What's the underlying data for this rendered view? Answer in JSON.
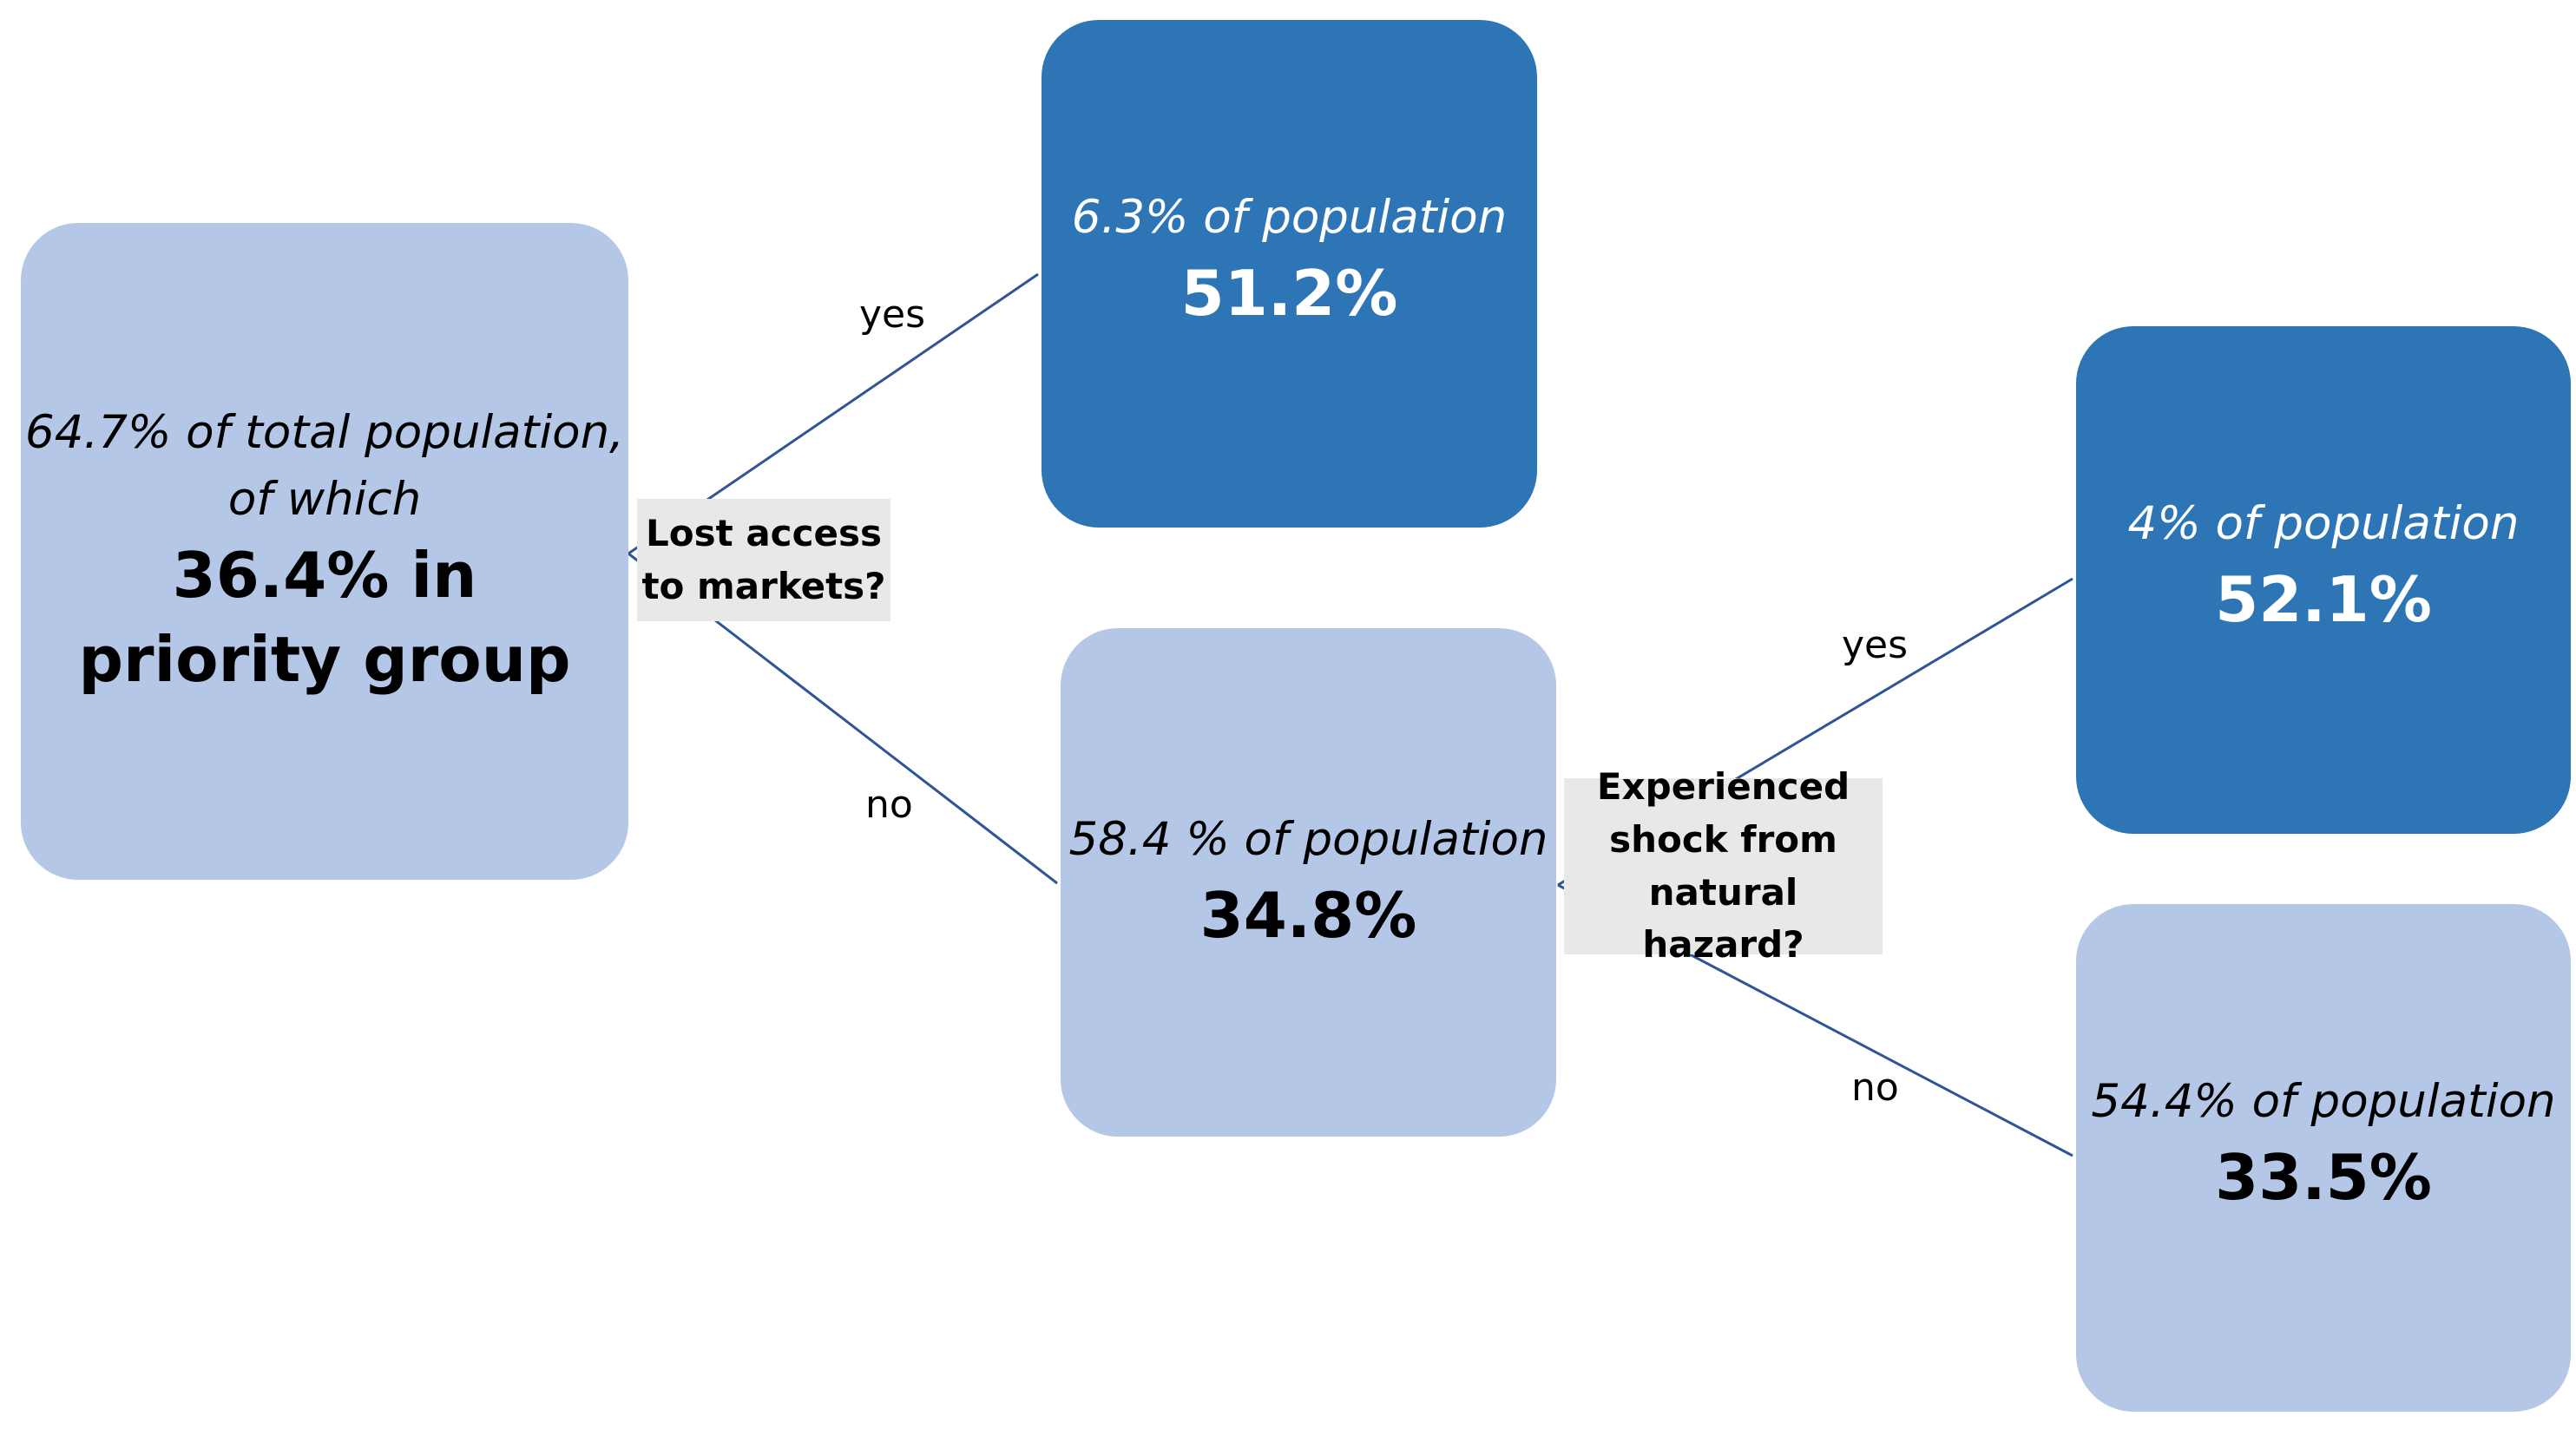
{
  "colors": {
    "light_node": "#b4c7e7",
    "dark_node": "#2e75b6",
    "connector": "#2f5597",
    "decision_bg": "#e8e8e8"
  },
  "root": {
    "line1": "64.7% of total population,",
    "line2": "of which",
    "value": "36.4% in priority group"
  },
  "decision1": {
    "line1": "Lost access",
    "line2": "to markets?",
    "yes": "yes",
    "no": "no"
  },
  "node_markets_yes": {
    "population": "6.3% of population",
    "value": "51.2%"
  },
  "node_markets_no": {
    "population": "58.4 % of population",
    "value": "34.8%"
  },
  "decision2": {
    "line1": "Experienced",
    "line2": "shock from",
    "line3": "natural hazard?",
    "yes": "yes",
    "no": "no"
  },
  "node_shock_yes": {
    "population": "4% of population",
    "value": "52.1%"
  },
  "node_shock_no": {
    "population": "54.4% of population",
    "value": "33.5%"
  }
}
